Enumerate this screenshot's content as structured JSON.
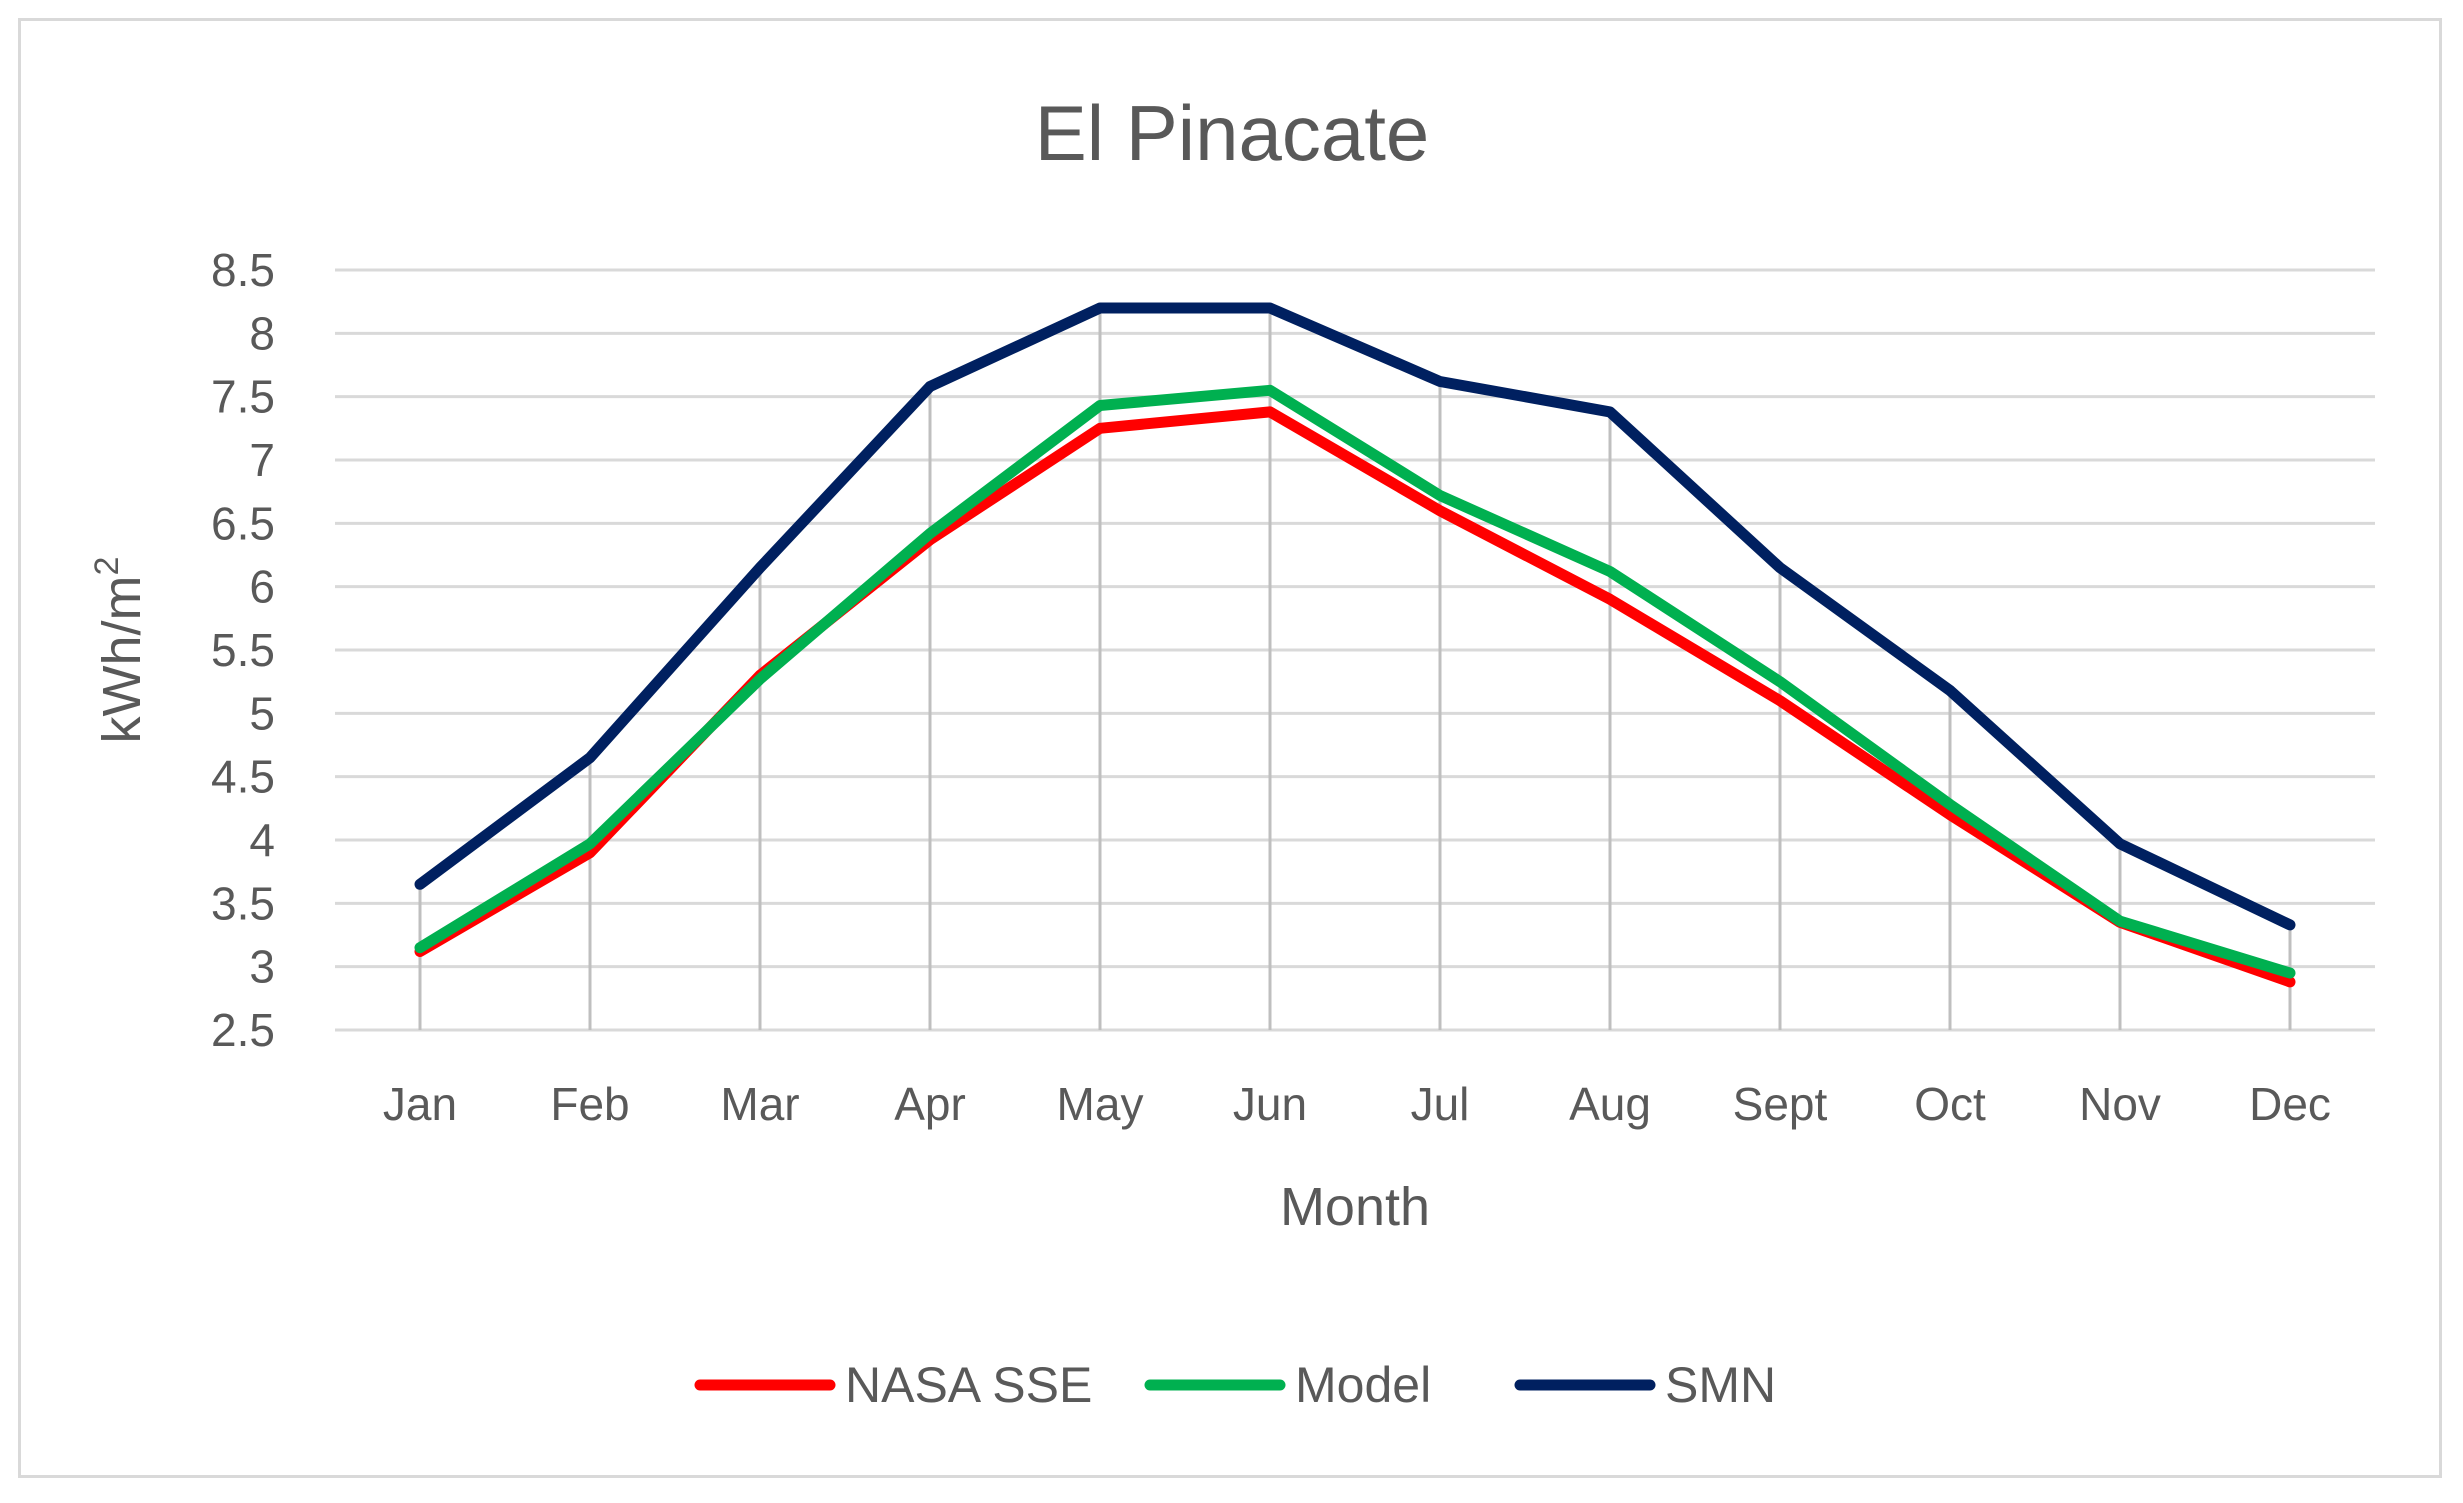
{
  "chart_data": {
    "type": "line",
    "title": "El Pinacate",
    "xlabel": "Month",
    "ylabel": "kWh/m",
    "ylabel_superscript": "2",
    "categories": [
      "Jan",
      "Feb",
      "Mar",
      "Apr",
      "May",
      "Jun",
      "Jul",
      "Aug",
      "Sept",
      "Oct",
      "Nov",
      "Dec"
    ],
    "ylim": [
      2.5,
      8.5
    ],
    "yticks": [
      "2.5",
      "3",
      "3.5",
      "4",
      "4.5",
      "5",
      "5.5",
      "6",
      "6.5",
      "7",
      "7.5",
      "8",
      "8.5"
    ],
    "grid": true,
    "legend_position": "bottom",
    "series": [
      {
        "name": "NASA SSE",
        "color": "#ff0000",
        "values": [
          3.12,
          3.9,
          5.3,
          6.37,
          7.25,
          7.38,
          6.6,
          5.9,
          5.1,
          4.2,
          3.35,
          2.88
        ]
      },
      {
        "name": "Model",
        "color": "#00b050",
        "values": [
          3.15,
          3.97,
          5.27,
          6.42,
          7.43,
          7.55,
          6.72,
          6.12,
          5.25,
          4.28,
          3.36,
          2.95
        ]
      },
      {
        "name": "SMN",
        "color": "#002060",
        "values": [
          3.65,
          4.65,
          6.15,
          7.58,
          8.2,
          8.2,
          7.62,
          7.38,
          6.15,
          5.18,
          3.97,
          3.33
        ]
      }
    ]
  }
}
